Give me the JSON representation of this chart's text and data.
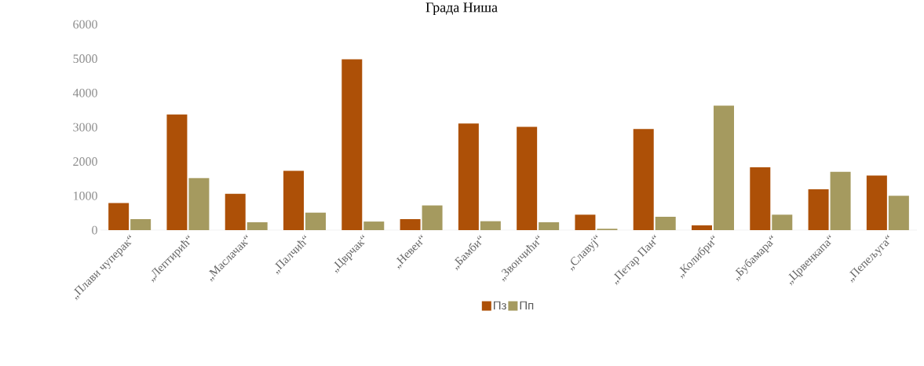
{
  "chart_data": {
    "type": "bar",
    "title": "Града Ниша",
    "categories": [
      "„Плави чуперак“",
      "„Лептирић“",
      "„Маслачак“",
      "„Палчић“",
      "„Цврчак“",
      "„Невен“",
      "„Бамби“",
      "„Звончићи“",
      "„Славуј“",
      "„Петар Пан“",
      "„Колибри“",
      "„Бубамара“",
      "„Црвенкапа“",
      "„Пепељуга“"
    ],
    "series": [
      {
        "name": "Пз",
        "color": "#ad5007",
        "values": [
          790,
          3370,
          1060,
          1730,
          4980,
          320,
          3110,
          3010,
          450,
          2950,
          140,
          1830,
          1190,
          1590
        ]
      },
      {
        "name": "Пп",
        "color": "#a59a5f",
        "values": [
          320,
          1520,
          230,
          510,
          250,
          720,
          260,
          230,
          40,
          390,
          3630,
          450,
          1700,
          1000
        ]
      }
    ],
    "ylim": [
      0,
      6000
    ],
    "yticks": [
      0,
      1000,
      2000,
      3000,
      4000,
      5000,
      6000
    ],
    "grid": false,
    "legend": "bottom"
  }
}
